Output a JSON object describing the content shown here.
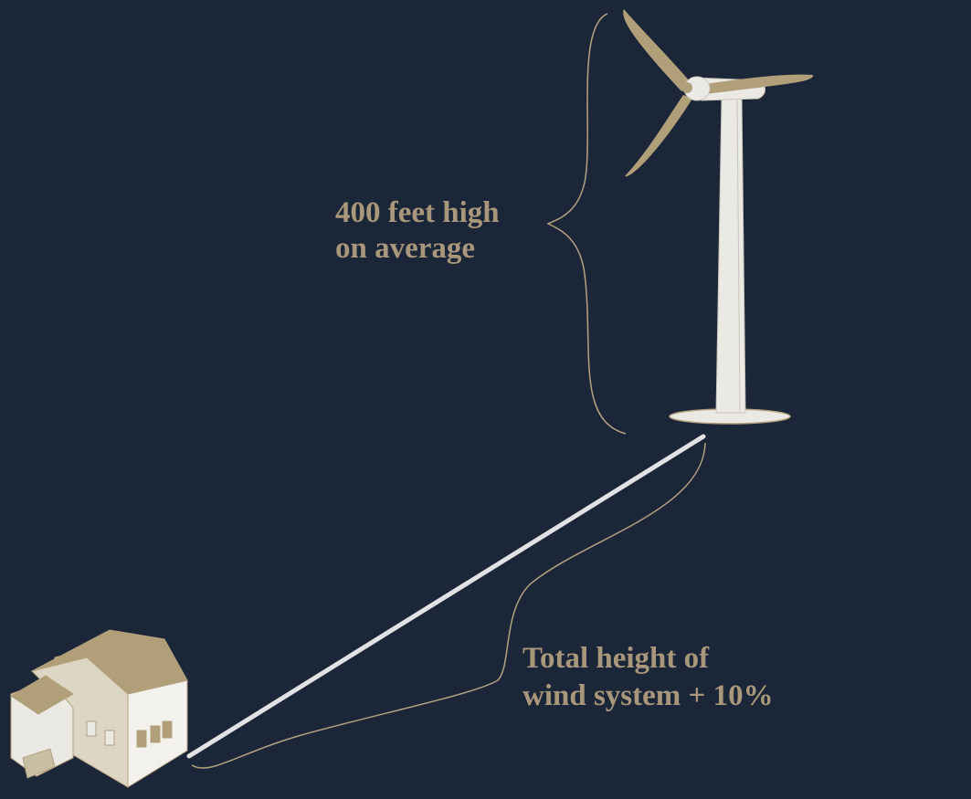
{
  "labels": {
    "height": [
      "400 feet high",
      "on average"
    ],
    "setback": [
      "Total height of",
      "wind system + 10%"
    ]
  }
}
